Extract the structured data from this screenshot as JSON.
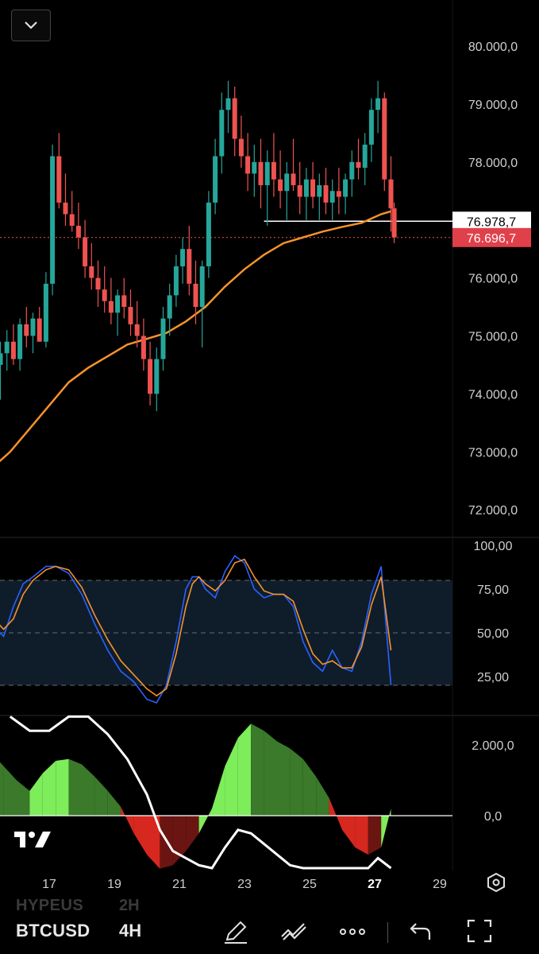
{
  "toolbar": {
    "symbol": "BTCUSD",
    "timeframe": "4H",
    "ghost_symbol": "HYPEUS",
    "ghost_timeframe": "2H"
  },
  "chart_data": [
    {
      "type": "candlestick",
      "price_axis_ticks": [
        "80.000,0",
        "79.000,0",
        "78.000,0",
        "76.000,0",
        "75.000,0",
        "74.000,0",
        "73.000,0",
        "72.000,0"
      ],
      "ylim": [
        71500,
        80300
      ],
      "badges": [
        {
          "label": "76.978,7",
          "value": 76978.7,
          "style": "level"
        },
        {
          "label": "76.696,7",
          "value": 76696.7,
          "style": "last-price"
        }
      ],
      "colors": {
        "up": "#26a69a",
        "down": "#ef5350",
        "ma": "#f7922c",
        "level": "#ffffff"
      },
      "horizontal_level": {
        "value": 76978.7,
        "from_date": 23.6
      },
      "ma_series": {
        "x": [
          14.2,
          15.0,
          15.8,
          16.4,
          17.0,
          17.6,
          18.2,
          18.8,
          19.4,
          20.0,
          20.6,
          21.2,
          21.8,
          22.4,
          23.0,
          23.6,
          24.2,
          24.8,
          25.4,
          26.0,
          26.6,
          27.2,
          27.5
        ],
        "y": [
          72100,
          72600,
          73000,
          73400,
          73800,
          74200,
          74450,
          74650,
          74850,
          74950,
          75050,
          75250,
          75500,
          75850,
          76150,
          76400,
          76600,
          76700,
          76800,
          76880,
          76950,
          77100,
          77150
        ]
      },
      "candles": [
        [
          14.1,
          74200,
          75200,
          73600,
          74000
        ],
        [
          14.3,
          74000,
          75000,
          73800,
          74800
        ],
        [
          14.5,
          74800,
          75300,
          74300,
          74600
        ],
        [
          14.7,
          74600,
          75100,
          74200,
          74900
        ],
        [
          14.9,
          74900,
          75300,
          74500,
          75100
        ],
        [
          15.1,
          75100,
          75400,
          74700,
          74800
        ],
        [
          15.3,
          74800,
          75200,
          74300,
          74500
        ],
        [
          15.5,
          74500,
          74900,
          73900,
          74700
        ],
        [
          15.7,
          74700,
          75100,
          74400,
          74900
        ],
        [
          15.9,
          74900,
          75200,
          74500,
          74600
        ],
        [
          16.1,
          74600,
          75300,
          74400,
          75200
        ],
        [
          16.3,
          75200,
          75500,
          74800,
          75000
        ],
        [
          16.5,
          75000,
          75400,
          74700,
          75300
        ],
        [
          16.7,
          75300,
          75500,
          74900,
          74900
        ],
        [
          16.9,
          74900,
          76100,
          74800,
          75900
        ],
        [
          17.1,
          75900,
          78300,
          75700,
          78100
        ],
        [
          17.3,
          78100,
          78500,
          77200,
          77300
        ],
        [
          17.5,
          77300,
          77800,
          76900,
          77100
        ],
        [
          17.7,
          77100,
          77500,
          76800,
          76900
        ],
        [
          17.9,
          76900,
          77300,
          76500,
          76700
        ],
        [
          18.1,
          76700,
          77000,
          76000,
          76200
        ],
        [
          18.3,
          76200,
          76600,
          75800,
          76000
        ],
        [
          18.5,
          76000,
          76300,
          75500,
          75800
        ],
        [
          18.7,
          75800,
          76200,
          75400,
          75600
        ],
        [
          18.9,
          75600,
          76000,
          75200,
          75400
        ],
        [
          19.1,
          75400,
          75800,
          75000,
          75700
        ],
        [
          19.3,
          75700,
          76000,
          75300,
          75500
        ],
        [
          19.5,
          75500,
          75800,
          75000,
          75200
        ],
        [
          19.7,
          75200,
          75600,
          74800,
          75000
        ],
        [
          19.9,
          75000,
          75300,
          74400,
          74600
        ],
        [
          20.1,
          74600,
          74900,
          73800,
          74000
        ],
        [
          20.3,
          74000,
          74800,
          73700,
          74600
        ],
        [
          20.5,
          74600,
          75500,
          74400,
          75300
        ],
        [
          20.7,
          75300,
          75900,
          75000,
          75700
        ],
        [
          20.9,
          75700,
          76400,
          75500,
          76200
        ],
        [
          21.1,
          76200,
          76700,
          75900,
          76500
        ],
        [
          21.3,
          76500,
          76900,
          75700,
          75900
        ],
        [
          21.5,
          75900,
          76300,
          75200,
          75500
        ],
        [
          21.7,
          75500,
          76300,
          74800,
          76200
        ],
        [
          21.9,
          76200,
          77500,
          76000,
          77300
        ],
        [
          22.1,
          77300,
          78400,
          77100,
          78100
        ],
        [
          22.3,
          78100,
          79200,
          77800,
          78900
        ],
        [
          22.5,
          78900,
          79400,
          78500,
          79100
        ],
        [
          22.7,
          79100,
          79300,
          78100,
          78400
        ],
        [
          22.9,
          78400,
          78800,
          77900,
          78100
        ],
        [
          23.1,
          78100,
          78500,
          77500,
          77800
        ],
        [
          23.3,
          77800,
          78300,
          77400,
          78000
        ],
        [
          23.5,
          78000,
          78400,
          77200,
          77600
        ],
        [
          23.7,
          77600,
          78200,
          76900,
          78000
        ],
        [
          23.9,
          78000,
          78500,
          77400,
          77700
        ],
        [
          24.1,
          77700,
          78200,
          77200,
          77500
        ],
        [
          24.3,
          77500,
          78000,
          77000,
          77800
        ],
        [
          24.5,
          77800,
          78400,
          77500,
          77600
        ],
        [
          24.7,
          77600,
          78000,
          77100,
          77400
        ],
        [
          24.9,
          77400,
          77900,
          77000,
          77700
        ],
        [
          25.1,
          77700,
          78000,
          77200,
          77400
        ],
        [
          25.3,
          77400,
          77800,
          77000,
          77600
        ],
        [
          25.5,
          77600,
          77900,
          77100,
          77300
        ],
        [
          25.7,
          77300,
          77700,
          77000,
          77500
        ],
        [
          25.9,
          77500,
          77900,
          77100,
          77400
        ],
        [
          26.1,
          77400,
          77800,
          77100,
          77700
        ],
        [
          26.3,
          77700,
          78200,
          77400,
          78000
        ],
        [
          26.5,
          78000,
          78400,
          77700,
          77900
        ],
        [
          26.7,
          77900,
          78500,
          77600,
          78300
        ],
        [
          26.9,
          78300,
          79100,
          78000,
          78900
        ],
        [
          27.1,
          78900,
          79400,
          78500,
          79100
        ],
        [
          27.3,
          79100,
          79200,
          77500,
          77700
        ],
        [
          27.5,
          77700,
          78100,
          76800,
          77200
        ],
        [
          27.6,
          77200,
          77300,
          76600,
          76700
        ]
      ]
    },
    {
      "type": "line",
      "indicator": "stochastic",
      "y_ticks": [
        "100,00",
        "75,00",
        "50,00",
        "25,00"
      ],
      "ylim": [
        0,
        100
      ],
      "bands": [
        80,
        50,
        20
      ],
      "colors": {
        "k": "#2962ff",
        "d": "#f7922c"
      },
      "series": [
        {
          "key": "k",
          "x": [
            14.0,
            14.5,
            14.9,
            15.2,
            15.6,
            15.9,
            16.2,
            16.5,
            16.9,
            17.2,
            17.6,
            18.0,
            18.4,
            18.8,
            19.2,
            19.6,
            20.0,
            20.3,
            20.6,
            20.9,
            21.2,
            21.4,
            21.6,
            21.8,
            22.1,
            22.4,
            22.7,
            23.0,
            23.3,
            23.6,
            23.9,
            24.2,
            24.5,
            24.8,
            25.1,
            25.4,
            25.7,
            26.0,
            26.3,
            26.6,
            26.9,
            27.2,
            27.5
          ],
          "y": [
            75,
            80,
            68,
            55,
            48,
            65,
            78,
            82,
            88,
            88,
            84,
            72,
            55,
            40,
            28,
            22,
            12,
            10,
            20,
            45,
            75,
            82,
            82,
            75,
            70,
            85,
            94,
            90,
            75,
            70,
            72,
            72,
            65,
            45,
            33,
            28,
            40,
            30,
            28,
            45,
            72,
            88,
            20
          ]
        },
        {
          "key": "d",
          "x": [
            14.0,
            14.5,
            14.9,
            15.2,
            15.6,
            15.9,
            16.2,
            16.5,
            16.9,
            17.2,
            17.6,
            18.0,
            18.4,
            18.8,
            19.2,
            19.6,
            20.0,
            20.3,
            20.6,
            20.9,
            21.2,
            21.4,
            21.6,
            21.8,
            22.1,
            22.4,
            22.7,
            23.0,
            23.3,
            23.6,
            23.9,
            24.2,
            24.5,
            24.8,
            25.1,
            25.4,
            25.7,
            26.0,
            26.3,
            26.6,
            26.9,
            27.2,
            27.5
          ],
          "y": [
            72,
            78,
            72,
            60,
            52,
            58,
            72,
            80,
            86,
            88,
            86,
            76,
            60,
            46,
            34,
            26,
            18,
            14,
            18,
            38,
            65,
            78,
            82,
            78,
            74,
            80,
            90,
            92,
            82,
            74,
            72,
            72,
            68,
            52,
            38,
            32,
            34,
            30,
            30,
            42,
            66,
            82,
            40
          ]
        }
      ]
    },
    {
      "type": "area",
      "indicator": "momentum-histogram",
      "y_ticks": [
        "2.000,0",
        "0,0"
      ],
      "ylim": [
        -1800,
        2800
      ],
      "colors": {
        "strong_up": "#7ded5a",
        "weak_up": "#3a7a2a",
        "strong_down": "#d6281e",
        "weak_down": "#6b1512",
        "line": "#ffffff"
      },
      "histogram": {
        "x": [
          14.0,
          14.4,
          14.8,
          15.2,
          15.6,
          16.0,
          16.4,
          16.8,
          17.2,
          17.6,
          18.0,
          18.4,
          18.8,
          19.2,
          19.6,
          20.0,
          20.4,
          20.8,
          21.2,
          21.6,
          22.0,
          22.4,
          22.8,
          23.2,
          23.6,
          24.0,
          24.4,
          24.8,
          25.2,
          25.6,
          26.0,
          26.4,
          26.8,
          27.2,
          27.5
        ],
        "y": [
          2200,
          2300,
          2150,
          1800,
          1400,
          1000,
          700,
          1200,
          1550,
          1600,
          1450,
          1100,
          700,
          250,
          -500,
          -1100,
          -1500,
          -1400,
          -1000,
          -500,
          200,
          1400,
          2200,
          2600,
          2400,
          2100,
          1900,
          1600,
          1100,
          500,
          -400,
          -900,
          -1100,
          -900,
          200
        ]
      },
      "signal": {
        "x": [
          15.8,
          16.4,
          17.0,
          17.6,
          18.2,
          18.8,
          19.4,
          20.0,
          20.4,
          20.8,
          21.2,
          21.6,
          22.0,
          22.4,
          22.8,
          23.2,
          23.6,
          24.0,
          24.4,
          24.8,
          26.0,
          26.4,
          26.8,
          27.1,
          27.5
        ],
        "y": [
          2800,
          2400,
          2400,
          2800,
          2800,
          2300,
          1600,
          600,
          -400,
          -1000,
          -1200,
          -1400,
          -1500,
          -900,
          -400,
          -500,
          -800,
          -1100,
          -1400,
          -1700,
          -2200,
          -2100,
          -1700,
          -1200,
          -1500
        ]
      },
      "x_ticks": [
        {
          "label": "17",
          "x": 17
        },
        {
          "label": "19",
          "x": 19
        },
        {
          "label": "21",
          "x": 21
        },
        {
          "label": "23",
          "x": 23
        },
        {
          "label": "25",
          "x": 25
        },
        {
          "label": "27",
          "x": 27,
          "bold": true
        },
        {
          "label": "29",
          "x": 29
        }
      ]
    }
  ]
}
